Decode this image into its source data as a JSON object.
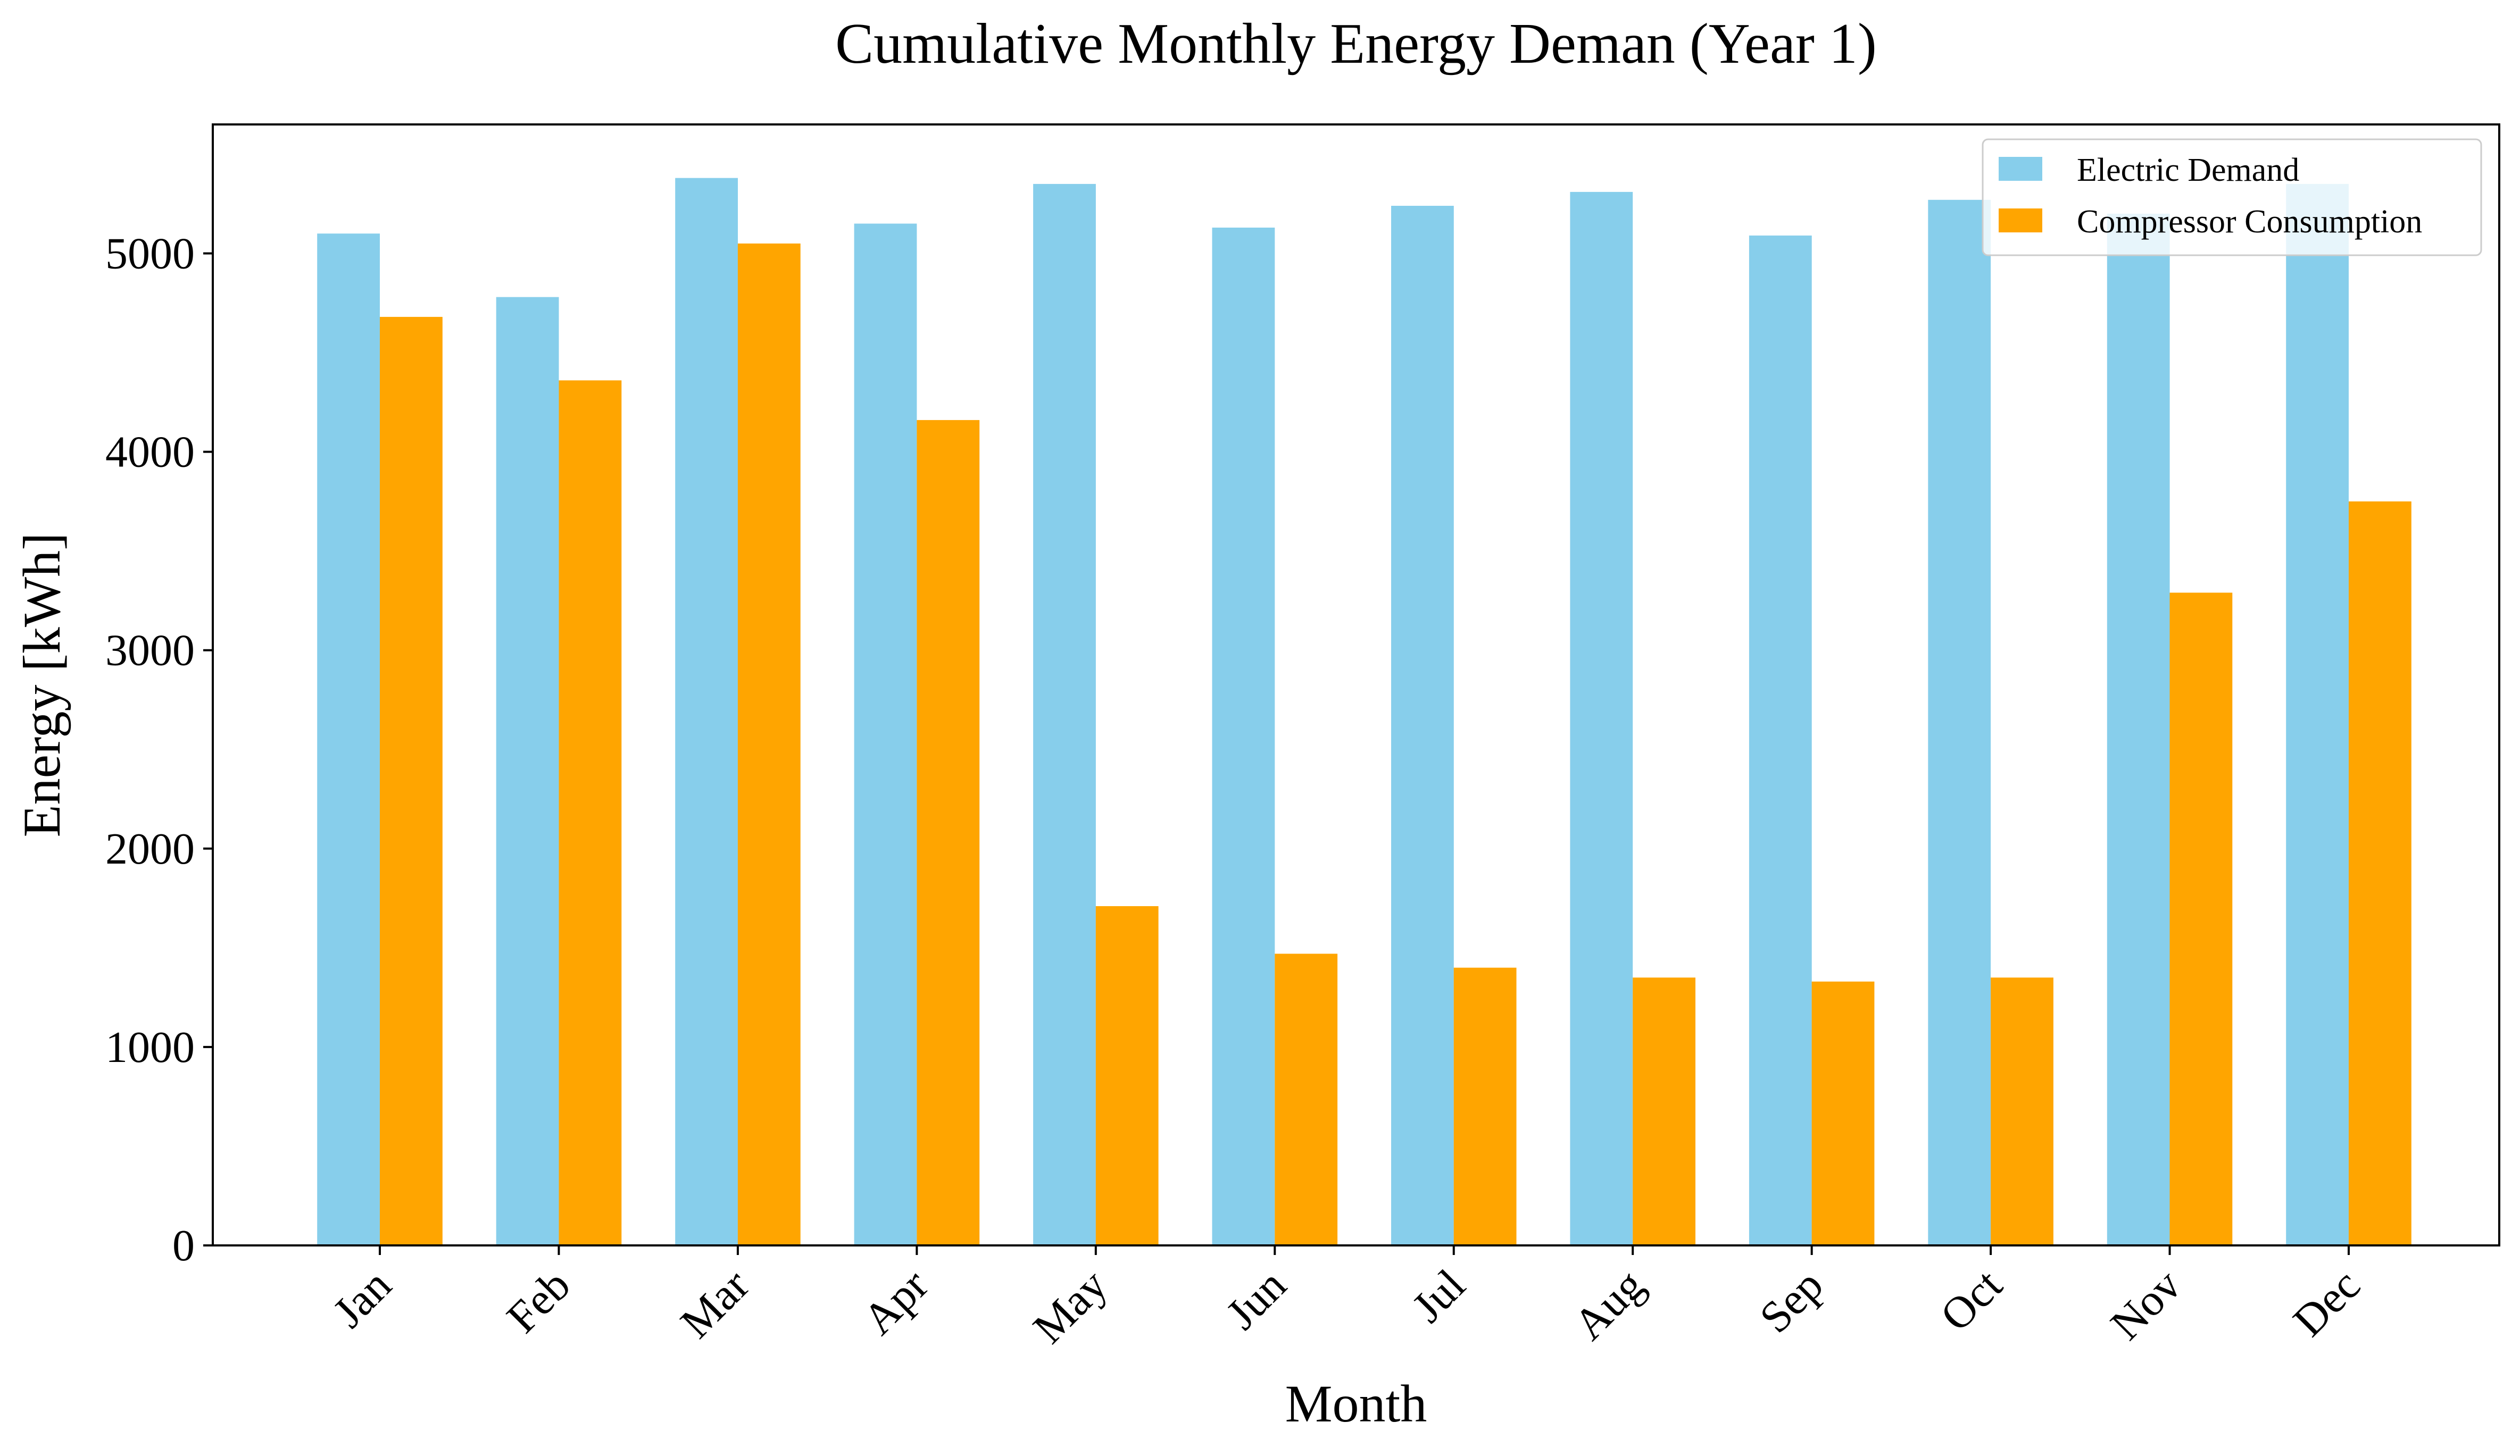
{
  "chart_data": {
    "type": "bar",
    "title": "Cumulative Monthly Energy Deman (Year 1)",
    "xlabel": "Month",
    "ylabel": "Energy [kWh]",
    "categories": [
      "Jan",
      "Feb",
      "Mar",
      "Apr",
      "May",
      "Jun",
      "Jul",
      "Aug",
      "Sep",
      "Oct",
      "Nov",
      "Dec"
    ],
    "series": [
      {
        "name": "Electric Demand",
        "color": "#87CEEB",
        "values": [
          5100,
          4780,
          5380,
          5150,
          5350,
          5130,
          5240,
          5310,
          5090,
          5270,
          5200,
          5350
        ]
      },
      {
        "name": "Compressor Consumption",
        "color": "#FFA500",
        "values": [
          4680,
          4360,
          5050,
          4160,
          1710,
          1470,
          1400,
          1350,
          1330,
          1350,
          3290,
          3750
        ]
      }
    ],
    "ylim": [
      0,
      5650
    ],
    "yticks": [
      "0",
      "1000",
      "2000",
      "3000",
      "4000",
      "5000"
    ],
    "grid": false,
    "legend_position": "top-right"
  }
}
